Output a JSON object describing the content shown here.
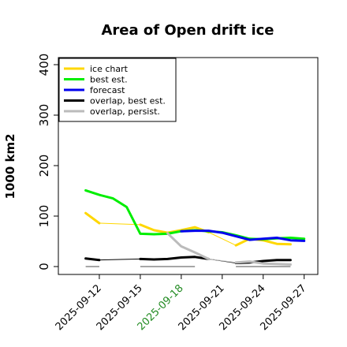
{
  "chart_data": {
    "type": "line",
    "title": "Area of Open drift ice",
    "xlabel": "",
    "ylabel": "1000 km2",
    "ylim": [
      0,
      400
    ],
    "xlim": [
      "2025-09-09",
      "2025-09-28"
    ],
    "y_ticks": [
      0,
      100,
      200,
      300,
      400
    ],
    "x_ticks": [
      {
        "date": "2025-09-12",
        "label": "2025-09-12",
        "color": "#000000"
      },
      {
        "date": "2025-09-15",
        "label": "2025-09-15",
        "color": "#000000"
      },
      {
        "date": "2025-09-18",
        "label": "2025-09-18",
        "color": "#228b22"
      },
      {
        "date": "2025-09-21",
        "label": "2025-09-21",
        "color": "#000000"
      },
      {
        "date": "2025-09-24",
        "label": "2025-09-24",
        "color": "#000000"
      },
      {
        "date": "2025-09-27",
        "label": "2025-09-27",
        "color": "#000000"
      }
    ],
    "grid": false,
    "legend_position": "top-left",
    "series": [
      {
        "name": "ice chart",
        "color": "#ffd700",
        "segments": [
          {
            "width": 3,
            "points": [
              [
                "2025-09-11",
                106
              ],
              [
                "2025-09-12",
                86
              ]
            ]
          },
          {
            "width": 1,
            "points": [
              [
                "2025-09-12",
                86
              ],
              [
                "2025-09-15",
                83
              ]
            ]
          },
          {
            "width": 3,
            "points": [
              [
                "2025-09-15",
                83
              ],
              [
                "2025-09-16",
                72
              ],
              [
                "2025-09-17",
                67
              ],
              [
                "2025-09-18",
                72
              ],
              [
                "2025-09-19",
                78
              ],
              [
                "2025-09-20",
                68
              ]
            ]
          },
          {
            "width": 1,
            "points": [
              [
                "2025-09-20",
                68
              ],
              [
                "2025-09-22",
                42
              ]
            ]
          },
          {
            "width": 3,
            "points": [
              [
                "2025-09-22",
                42
              ],
              [
                "2025-09-23",
                55
              ],
              [
                "2025-09-24",
                52
              ],
              [
                "2025-09-25",
                45
              ],
              [
                "2025-09-26",
                44
              ]
            ]
          }
        ]
      },
      {
        "name": "best est.",
        "color": "#00ee00",
        "segments": [
          {
            "width": 3,
            "points": [
              [
                "2025-09-11",
                151
              ],
              [
                "2025-09-12",
                142
              ],
              [
                "2025-09-13",
                135
              ],
              [
                "2025-09-14",
                118
              ],
              [
                "2025-09-15",
                65
              ],
              [
                "2025-09-16",
                64
              ],
              [
                "2025-09-17",
                65
              ],
              [
                "2025-09-18",
                70
              ],
              [
                "2025-09-19",
                72
              ],
              [
                "2025-09-20",
                70
              ],
              [
                "2025-09-21",
                68
              ],
              [
                "2025-09-22",
                62
              ],
              [
                "2025-09-23",
                55
              ],
              [
                "2025-09-24",
                54
              ],
              [
                "2025-09-25",
                56
              ],
              [
                "2025-09-26",
                57
              ],
              [
                "2025-09-27",
                55
              ]
            ]
          }
        ]
      },
      {
        "name": "forecast",
        "color": "#0000ee",
        "segments": [
          {
            "width": 3,
            "points": [
              [
                "2025-09-18",
                70
              ],
              [
                "2025-09-19",
                71
              ],
              [
                "2025-09-20",
                71
              ],
              [
                "2025-09-21",
                67
              ],
              [
                "2025-09-22",
                60
              ],
              [
                "2025-09-23",
                53
              ],
              [
                "2025-09-24",
                55
              ],
              [
                "2025-09-25",
                57
              ],
              [
                "2025-09-26",
                52
              ],
              [
                "2025-09-27",
                51
              ]
            ]
          }
        ]
      },
      {
        "name": "overlap, best est.",
        "color": "#000000",
        "segments": [
          {
            "width": 3,
            "points": [
              [
                "2025-09-11",
                16
              ],
              [
                "2025-09-12",
                13
              ]
            ]
          },
          {
            "width": 1,
            "points": [
              [
                "2025-09-12",
                13
              ],
              [
                "2025-09-15",
                15
              ]
            ]
          },
          {
            "width": 3,
            "points": [
              [
                "2025-09-15",
                15
              ],
              [
                "2025-09-16",
                14
              ],
              [
                "2025-09-17",
                15
              ],
              [
                "2025-09-18",
                18
              ],
              [
                "2025-09-19",
                19
              ],
              [
                "2025-09-20",
                15
              ]
            ]
          },
          {
            "width": 1,
            "points": [
              [
                "2025-09-20",
                15
              ],
              [
                "2025-09-22",
                7
              ]
            ]
          },
          {
            "width": 3,
            "points": [
              [
                "2025-09-22",
                7
              ],
              [
                "2025-09-23",
                8
              ],
              [
                "2025-09-24",
                11
              ],
              [
                "2025-09-25",
                13
              ],
              [
                "2025-09-26",
                13
              ]
            ]
          }
        ]
      },
      {
        "name": "overlap, persist.",
        "color": "#bbbbbb",
        "segments": [
          {
            "width": 3,
            "points": [
              [
                "2025-09-17",
                66
              ],
              [
                "2025-09-18",
                40
              ],
              [
                "2025-09-19",
                28
              ],
              [
                "2025-09-20",
                15
              ]
            ]
          },
          {
            "width": 1,
            "points": [
              [
                "2025-09-20",
                15
              ],
              [
                "2025-09-22",
                8
              ]
            ]
          },
          {
            "width": 3,
            "points": [
              [
                "2025-09-22",
                8
              ],
              [
                "2025-09-23",
                10
              ],
              [
                "2025-09-24",
                6
              ],
              [
                "2025-09-25",
                5
              ],
              [
                "2025-09-26",
                4
              ]
            ]
          }
        ]
      }
    ],
    "baseline_segments": [
      {
        "color": "#888888",
        "from": "2025-09-11",
        "to": "2025-09-12",
        "y": 0
      },
      {
        "color": "#888888",
        "from": "2025-09-15",
        "to": "2025-09-19",
        "y": 0
      },
      {
        "color": "#888888",
        "from": "2025-09-22",
        "to": "2025-09-26",
        "y": 0
      }
    ]
  }
}
